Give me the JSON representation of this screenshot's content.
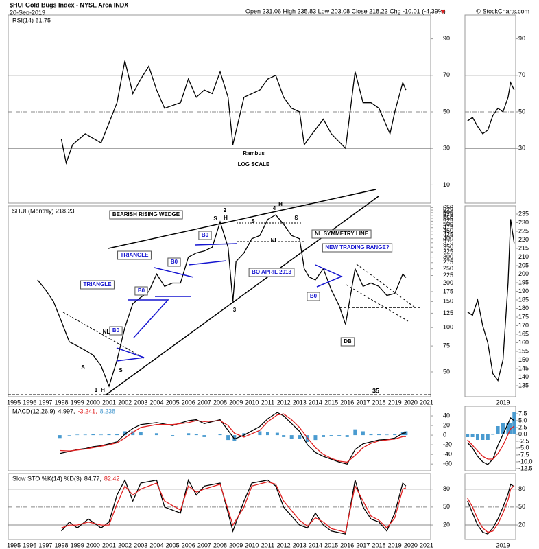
{
  "header": {
    "title": "$HUI Gold Bugs Index - NYSE Arca INDX",
    "date": "20-Sep-2019",
    "quote": "Open 231.06 High 235.83 Low 203.08 Close 218.23 Chg -10.01 (-4.39%)",
    "credit": "© StockCharts.com"
  },
  "chart_data": [
    {
      "type": "line",
      "title": "RSI(14) 61.75",
      "xlim": [
        1994.65,
        2021.26
      ],
      "ylim": [
        0,
        103
      ],
      "yticks": [
        10,
        30,
        50,
        70,
        90
      ],
      "solid_lines": [
        30,
        70
      ],
      "dashed_lines": [
        50
      ],
      "annotations": [
        "Rambus",
        "LOG SCALE"
      ],
      "x": [
        1998.0,
        1998.3,
        1998.7,
        1999.5,
        2000.5,
        2001.5,
        2002.0,
        2002.5,
        2003.0,
        2003.5,
        2004.0,
        2004.5,
        2005.5,
        2006.0,
        2006.5,
        2007.0,
        2007.5,
        2008.0,
        2008.5,
        2008.8,
        2009.5,
        2010.5,
        2011.0,
        2011.5,
        2012.0,
        2012.5,
        2013.0,
        2013.3,
        2013.8,
        2014.5,
        2015.0,
        2015.9,
        2016.5,
        2017.0,
        2017.5,
        2018.0,
        2018.7,
        2019.0,
        2019.5,
        2019.7
      ],
      "series": [
        {
          "color": "#000000",
          "values": [
            35,
            22,
            32,
            38,
            33,
            55,
            78,
            60,
            68,
            75,
            62,
            52,
            55,
            68,
            58,
            62,
            60,
            72,
            58,
            32,
            58,
            62,
            68,
            70,
            58,
            52,
            50,
            32,
            38,
            46,
            38,
            30,
            72,
            55,
            55,
            52,
            38,
            50,
            66,
            62
          ]
        }
      ]
    },
    {
      "type": "line",
      "title": "$HUI (Monthly) 218.23",
      "log_scale": true,
      "xlim": [
        1994.65,
        2021.26
      ],
      "ylim": [
        34,
        667
      ],
      "yticks": [
        50,
        75,
        100,
        125,
        150,
        175,
        200,
        225,
        250,
        275,
        300,
        325,
        350,
        375,
        400,
        425,
        450,
        475,
        500,
        525,
        550,
        575,
        600,
        625,
        650
      ],
      "xticks": [
        1995,
        1996,
        1997,
        1998,
        1999,
        2000,
        2001,
        2002,
        2003,
        2004,
        2005,
        2006,
        2007,
        2008,
        2009,
        2010,
        2011,
        2012,
        2013,
        2014,
        2015,
        2016,
        2017,
        2018,
        2019,
        2020,
        2021
      ],
      "hlines": [
        35
      ],
      "annotations": [
        "BEARISH RISING WEDGE",
        "TRIANGLE",
        "TRIANGLE",
        "B0",
        "B0",
        "B0",
        "B0",
        "B0",
        "BO APRIL 2013",
        "NL SYMMETRY LINE",
        "NEW TRADING RANGE?",
        "NL",
        "NL",
        "S",
        "S",
        "S",
        "S",
        "S",
        "H",
        "H",
        "H",
        "2",
        "4",
        "3",
        "1",
        "DB"
      ],
      "x": [
        1996.5,
        1997.0,
        1997.5,
        1998.0,
        1998.5,
        1999.0,
        1999.5,
        2000.0,
        2000.5,
        2001.0,
        2001.5,
        2002.0,
        2002.5,
        2003.0,
        2003.5,
        2004.0,
        2004.5,
        2005.0,
        2005.5,
        2006.0,
        2006.5,
        2007.0,
        2007.5,
        2008.0,
        2008.5,
        2008.8,
        2009.0,
        2009.5,
        2010.0,
        2010.5,
        2011.0,
        2011.5,
        2012.0,
        2012.5,
        2013.0,
        2013.3,
        2013.6,
        2014.0,
        2014.5,
        2015.0,
        2015.5,
        2015.9,
        2016.5,
        2017.0,
        2017.5,
        2018.0,
        2018.5,
        2019.0,
        2019.5,
        2019.7
      ],
      "series": [
        {
          "color": "#000000",
          "values": [
            210,
            180,
            150,
            110,
            80,
            75,
            70,
            65,
            55,
            40,
            60,
            100,
            145,
            160,
            175,
            230,
            190,
            200,
            200,
            300,
            320,
            330,
            350,
            520,
            350,
            150,
            280,
            320,
            400,
            420,
            540,
            580,
            500,
            420,
            400,
            250,
            220,
            210,
            250,
            180,
            140,
            105,
            250,
            190,
            200,
            190,
            165,
            170,
            230,
            218
          ]
        }
      ]
    },
    {
      "type": "line",
      "title": "MACD(12,26,9)",
      "readouts": [
        "4.997,",
        "-3.241,",
        "8.238"
      ],
      "xlim": [
        1994.65,
        2021.26
      ],
      "ylim": [
        -74,
        60
      ],
      "yticks": [
        -60,
        -40,
        -20,
        0,
        20,
        40
      ],
      "x": [
        1997.9,
        1998.5,
        1999.0,
        1999.5,
        2000.0,
        2000.5,
        2001.0,
        2001.5,
        2002.0,
        2002.5,
        2003.0,
        2004.0,
        2005.0,
        2006.0,
        2006.5,
        2007.0,
        2008.0,
        2008.5,
        2008.9,
        2009.5,
        2010.5,
        2011.0,
        2011.6,
        2012.0,
        2012.5,
        2013.0,
        2013.5,
        2014.0,
        2014.5,
        2015.0,
        2015.5,
        2016.0,
        2016.5,
        2017.0,
        2017.5,
        2018.0,
        2018.5,
        2019.0,
        2019.5,
        2019.7
      ],
      "series": [
        {
          "type": "bar",
          "color": "#4a9bd0",
          "values": [
            -6,
            -1,
            1,
            1,
            2,
            1,
            2,
            2,
            8,
            8,
            6,
            4,
            -2,
            4,
            2,
            -4,
            2,
            -10,
            -12,
            4,
            8,
            6,
            5,
            -4,
            -8,
            -8,
            -14,
            -10,
            -4,
            -2,
            -2,
            -4,
            12,
            8,
            3,
            2,
            1,
            2,
            7,
            8
          ]
        },
        {
          "color": "#000000",
          "values": [
            -38,
            -34,
            -30,
            -28,
            -24,
            -22,
            -18,
            -14,
            2,
            14,
            22,
            26,
            20,
            30,
            32,
            24,
            32,
            10,
            -8,
            0,
            18,
            34,
            47,
            40,
            24,
            8,
            -20,
            -36,
            -44,
            -50,
            -56,
            -60,
            -30,
            -18,
            -14,
            -10,
            -9,
            -6,
            4,
            5
          ]
        },
        {
          "color": "#e02020",
          "values": [
            -32,
            -33,
            -31,
            -29,
            -26,
            -23,
            -20,
            -16,
            -6,
            6,
            16,
            22,
            22,
            26,
            30,
            28,
            30,
            20,
            4,
            -4,
            10,
            28,
            42,
            44,
            32,
            16,
            -6,
            -26,
            -40,
            -48,
            -54,
            -56,
            -42,
            -26,
            -17,
            -12,
            -10,
            -8,
            -3,
            -3
          ]
        }
      ]
    },
    {
      "type": "line",
      "title": "Slow STO %K(14) %D(3)",
      "readouts": [
        "84.77,",
        "82.42"
      ],
      "xlim": [
        1994.65,
        2021.26
      ],
      "ylim": [
        -4,
        106
      ],
      "yticks": [
        20,
        50,
        80
      ],
      "solid_lines": [
        20,
        80
      ],
      "dashed_lines": [
        50
      ],
      "xticks": [
        1995,
        1996,
        1997,
        1998,
        1999,
        2000,
        2001,
        2002,
        2003,
        2004,
        2005,
        2006,
        2007,
        2008,
        2009,
        2010,
        2011,
        2012,
        2013,
        2014,
        2015,
        2016,
        2017,
        2018,
        2019,
        2020,
        2021
      ],
      "x": [
        1998,
        1998.5,
        1999,
        1999.7,
        2000.5,
        2001,
        2001.5,
        2002,
        2002.5,
        2003,
        2004,
        2004.5,
        2005.5,
        2006,
        2006.5,
        2007,
        2008,
        2008.8,
        2009.5,
        2010,
        2011,
        2011.5,
        2012,
        2013,
        2013.5,
        2014,
        2014.5,
        2015,
        2015.9,
        2016.5,
        2017,
        2017.5,
        2018,
        2018.5,
        2019,
        2019.5,
        2019.7
      ],
      "series": [
        {
          "color": "#000000",
          "values": [
            10,
            25,
            15,
            30,
            15,
            25,
            70,
            95,
            60,
            90,
            95,
            50,
            40,
            95,
            70,
            85,
            90,
            10,
            60,
            90,
            95,
            85,
            50,
            20,
            15,
            40,
            20,
            10,
            5,
            95,
            50,
            30,
            25,
            10,
            40,
            90,
            85
          ]
        },
        {
          "color": "#e02020",
          "values": [
            15,
            20,
            20,
            25,
            20,
            20,
            55,
            85,
            70,
            80,
            90,
            60,
            45,
            85,
            75,
            80,
            88,
            20,
            50,
            85,
            92,
            88,
            60,
            28,
            18,
            32,
            25,
            14,
            8,
            85,
            60,
            35,
            28,
            15,
            32,
            80,
            82
          ]
        }
      ]
    },
    {
      "type": "line",
      "xlim": [
        2018.75,
        2019.75
      ],
      "ylim": [
        0,
        103
      ],
      "yticks": [
        30,
        50,
        70,
        90
      ],
      "solid_lines": [
        30,
        70
      ],
      "dashed_lines": [
        50
      ],
      "x": [
        2018.8,
        2018.9,
        2019.0,
        2019.1,
        2019.2,
        2019.3,
        2019.4,
        2019.5,
        2019.6,
        2019.65,
        2019.72
      ],
      "series": [
        {
          "color": "#000000",
          "values": [
            45,
            47,
            42,
            38,
            40,
            48,
            52,
            50,
            58,
            66,
            62
          ]
        }
      ]
    },
    {
      "type": "line",
      "xlim": [
        2018.75,
        2019.75
      ],
      "ylim": [
        128.6,
        239.8
      ],
      "yticks": [
        135,
        140,
        145,
        150,
        155,
        160,
        165,
        170,
        175,
        180,
        185,
        190,
        195,
        200,
        205,
        210,
        215,
        220,
        225,
        230,
        235
      ],
      "xticks": [
        {
          "value": 2019.5,
          "label": "2019"
        }
      ],
      "x": [
        2018.8,
        2018.9,
        2019.0,
        2019.1,
        2019.2,
        2019.3,
        2019.4,
        2019.5,
        2019.6,
        2019.65,
        2019.72
      ],
      "series": [
        {
          "color": "#000000",
          "values": [
            178,
            176,
            185,
            170,
            160,
            142,
            138,
            150,
            195,
            232,
            218
          ]
        }
      ]
    },
    {
      "type": "line",
      "xlim": [
        2018.75,
        2019.75
      ],
      "ylim": [
        -13.25,
        10.25
      ],
      "yticks": [
        {
          "value": -12.5,
          "label": "-12.5"
        },
        {
          "value": -10,
          "label": "-10.0"
        },
        {
          "value": -7.5,
          "label": "-7.5"
        },
        {
          "value": -5,
          "label": "-5.0"
        },
        {
          "value": -2.5,
          "label": "-2.5"
        },
        {
          "value": 0,
          "label": "0.0"
        },
        {
          "value": 2.5,
          "label": "2.5"
        },
        {
          "value": 5,
          "label": "5.0"
        },
        {
          "value": 7.5,
          "label": "7.5"
        }
      ],
      "x": [
        2018.8,
        2018.9,
        2019.0,
        2019.1,
        2019.2,
        2019.3,
        2019.4,
        2019.5,
        2019.6,
        2019.65,
        2019.72
      ],
      "series": [
        {
          "type": "bar",
          "color": "#4a9bd0",
          "values": [
            -1,
            -1,
            -2,
            -2,
            -2,
            0,
            3,
            4,
            4,
            4,
            8
          ]
        },
        {
          "color": "#000000",
          "values": [
            -3,
            -5,
            -8,
            -10,
            -11,
            -9,
            -4,
            0,
            4,
            6,
            5
          ]
        },
        {
          "color": "#e02020",
          "values": [
            -2,
            -4,
            -6,
            -8,
            -9,
            -9,
            -7,
            -4,
            0,
            2,
            3
          ]
        }
      ]
    },
    {
      "type": "line",
      "xlim": [
        2018.75,
        2019.75
      ],
      "ylim": [
        -4,
        106
      ],
      "yticks": [
        20,
        50,
        80
      ],
      "solid_lines": [
        20,
        80
      ],
      "dashed_lines": [
        50
      ],
      "xticks": [
        {
          "value": 2019.5,
          "label": "2019"
        }
      ],
      "x": [
        2018.8,
        2018.9,
        2019.0,
        2019.1,
        2019.2,
        2019.3,
        2019.4,
        2019.5,
        2019.6,
        2019.65,
        2019.72
      ],
      "series": [
        {
          "color": "#000000",
          "values": [
            60,
            40,
            20,
            8,
            5,
            15,
            30,
            50,
            72,
            88,
            84
          ]
        },
        {
          "color": "#e02020",
          "values": [
            65,
            50,
            30,
            15,
            8,
            10,
            22,
            40,
            62,
            80,
            86
          ]
        }
      ]
    }
  ]
}
